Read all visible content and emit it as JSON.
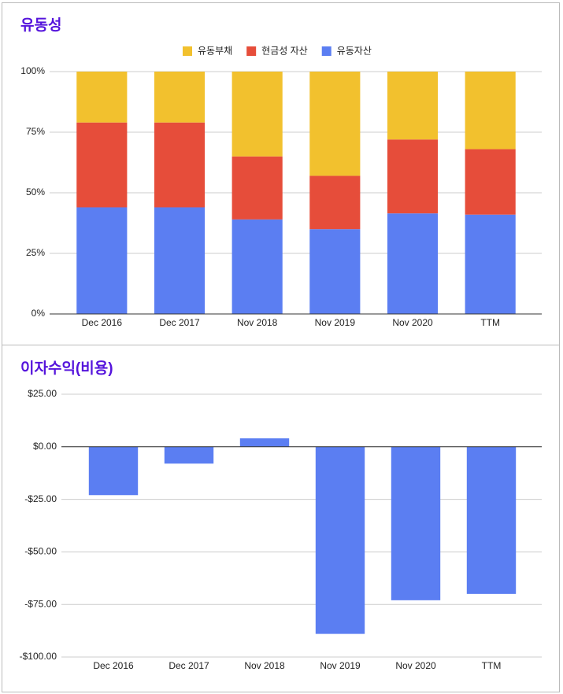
{
  "chart_data": [
    {
      "type": "stacked_bar",
      "title": "유동성",
      "categories": [
        "Dec 2016",
        "Dec 2017",
        "Nov 2018",
        "Nov 2019",
        "Nov 2020",
        "TTM"
      ],
      "series": [
        {
          "name": "유동부채",
          "color": "#f2c12e",
          "values": [
            21,
            21,
            35,
            43,
            28,
            32
          ]
        },
        {
          "name": "현금성 자산",
          "color": "#e64d3a",
          "values": [
            35,
            35,
            26,
            22,
            30.5,
            27
          ]
        },
        {
          "name": "유동자산",
          "color": "#5b7ef2",
          "values": [
            44,
            44,
            39,
            35,
            41.5,
            41
          ]
        }
      ],
      "ylim": [
        0,
        100
      ],
      "yticks": [
        {
          "value": 0,
          "label": "0%"
        },
        {
          "value": 25,
          "label": "25%"
        },
        {
          "value": 50,
          "label": "50%"
        },
        {
          "value": 75,
          "label": "75%"
        },
        {
          "value": 100,
          "label": "100%"
        }
      ],
      "grid": true,
      "legend": "top"
    },
    {
      "type": "bar",
      "title": "이자수익(비용)",
      "categories": [
        "Dec 2016",
        "Dec 2017",
        "Nov 2018",
        "Nov 2019",
        "Nov 2020",
        "TTM"
      ],
      "values": [
        -23,
        -8,
        4,
        -89,
        -73,
        -70
      ],
      "color": "#5b7ef2",
      "ylim": [
        -100,
        25
      ],
      "yticks": [
        {
          "value": -100,
          "label": "-$100.00"
        },
        {
          "value": -75,
          "label": "-$75.00"
        },
        {
          "value": -50,
          "label": "-$50.00"
        },
        {
          "value": -25,
          "label": "-$25.00"
        },
        {
          "value": 0,
          "label": "$0.00"
        },
        {
          "value": 25,
          "label": "$25.00"
        }
      ],
      "grid": true
    }
  ]
}
